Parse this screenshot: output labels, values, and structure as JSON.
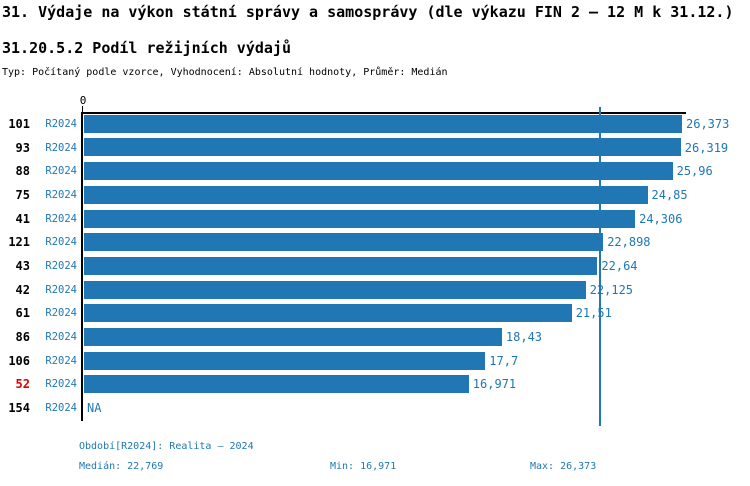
{
  "title": "31. Výdaje na výkon státní správy a samosprávy (dle výkazu FIN 2 – 12 M k 31.12.)",
  "subtitle": "31.20.5.2 Podíl režijních výdajů",
  "meta_line": "Typ: Počítaný podle vzorce, Vyhodnocení: Absolutní hodnoty, Průměr: Medián",
  "colors": {
    "bar": "#2176b4",
    "text_blue": "#1f77b4",
    "highlight_red": "#e00000",
    "axis_black": "#000000",
    "median_line": "#1f77b4"
  },
  "chart_data": {
    "type": "bar",
    "orientation": "horizontal",
    "title": "31.20.5.2 Podíl režijních výdajů",
    "axis_origin_label": "0",
    "series_label": "R2024",
    "categories": [
      "101",
      "93",
      "88",
      "75",
      "41",
      "121",
      "43",
      "42",
      "61",
      "86",
      "106",
      "52",
      "154"
    ],
    "rows": [
      {
        "id": "101",
        "period": "R2024",
        "value": 26.373,
        "label": "26,373",
        "highlight": false
      },
      {
        "id": "93",
        "period": "R2024",
        "value": 26.319,
        "label": "26,319",
        "highlight": false
      },
      {
        "id": "88",
        "period": "R2024",
        "value": 25.96,
        "label": "25,96",
        "highlight": false
      },
      {
        "id": "75",
        "period": "R2024",
        "value": 24.85,
        "label": "24,85",
        "highlight": false
      },
      {
        "id": "41",
        "period": "R2024",
        "value": 24.306,
        "label": "24,306",
        "highlight": false
      },
      {
        "id": "121",
        "period": "R2024",
        "value": 22.898,
        "label": "22,898",
        "highlight": false
      },
      {
        "id": "43",
        "period": "R2024",
        "value": 22.64,
        "label": "22,64",
        "highlight": false
      },
      {
        "id": "42",
        "period": "R2024",
        "value": 22.125,
        "label": "22,125",
        "highlight": false
      },
      {
        "id": "61",
        "period": "R2024",
        "value": 21.51,
        "label": "21,51",
        "highlight": false
      },
      {
        "id": "86",
        "period": "R2024",
        "value": 18.43,
        "label": "18,43",
        "highlight": false
      },
      {
        "id": "106",
        "period": "R2024",
        "value": 17.7,
        "label": "17,7",
        "highlight": false
      },
      {
        "id": "52",
        "period": "R2024",
        "value": 16.971,
        "label": "16,971",
        "highlight": true
      },
      {
        "id": "154",
        "period": "R2024",
        "value": null,
        "label": "NA",
        "highlight": false
      }
    ],
    "median": 22.769,
    "min": 16.971,
    "max": 26.373,
    "xlim": [
      0,
      26.373
    ],
    "legend_position": "none",
    "grid": false
  },
  "footer": {
    "period_line": "Období[R2024]: Realita – 2024",
    "median_label": "Medián: 22,769",
    "min_label": "Min: 16,971",
    "max_label": "Max: 26,373"
  }
}
